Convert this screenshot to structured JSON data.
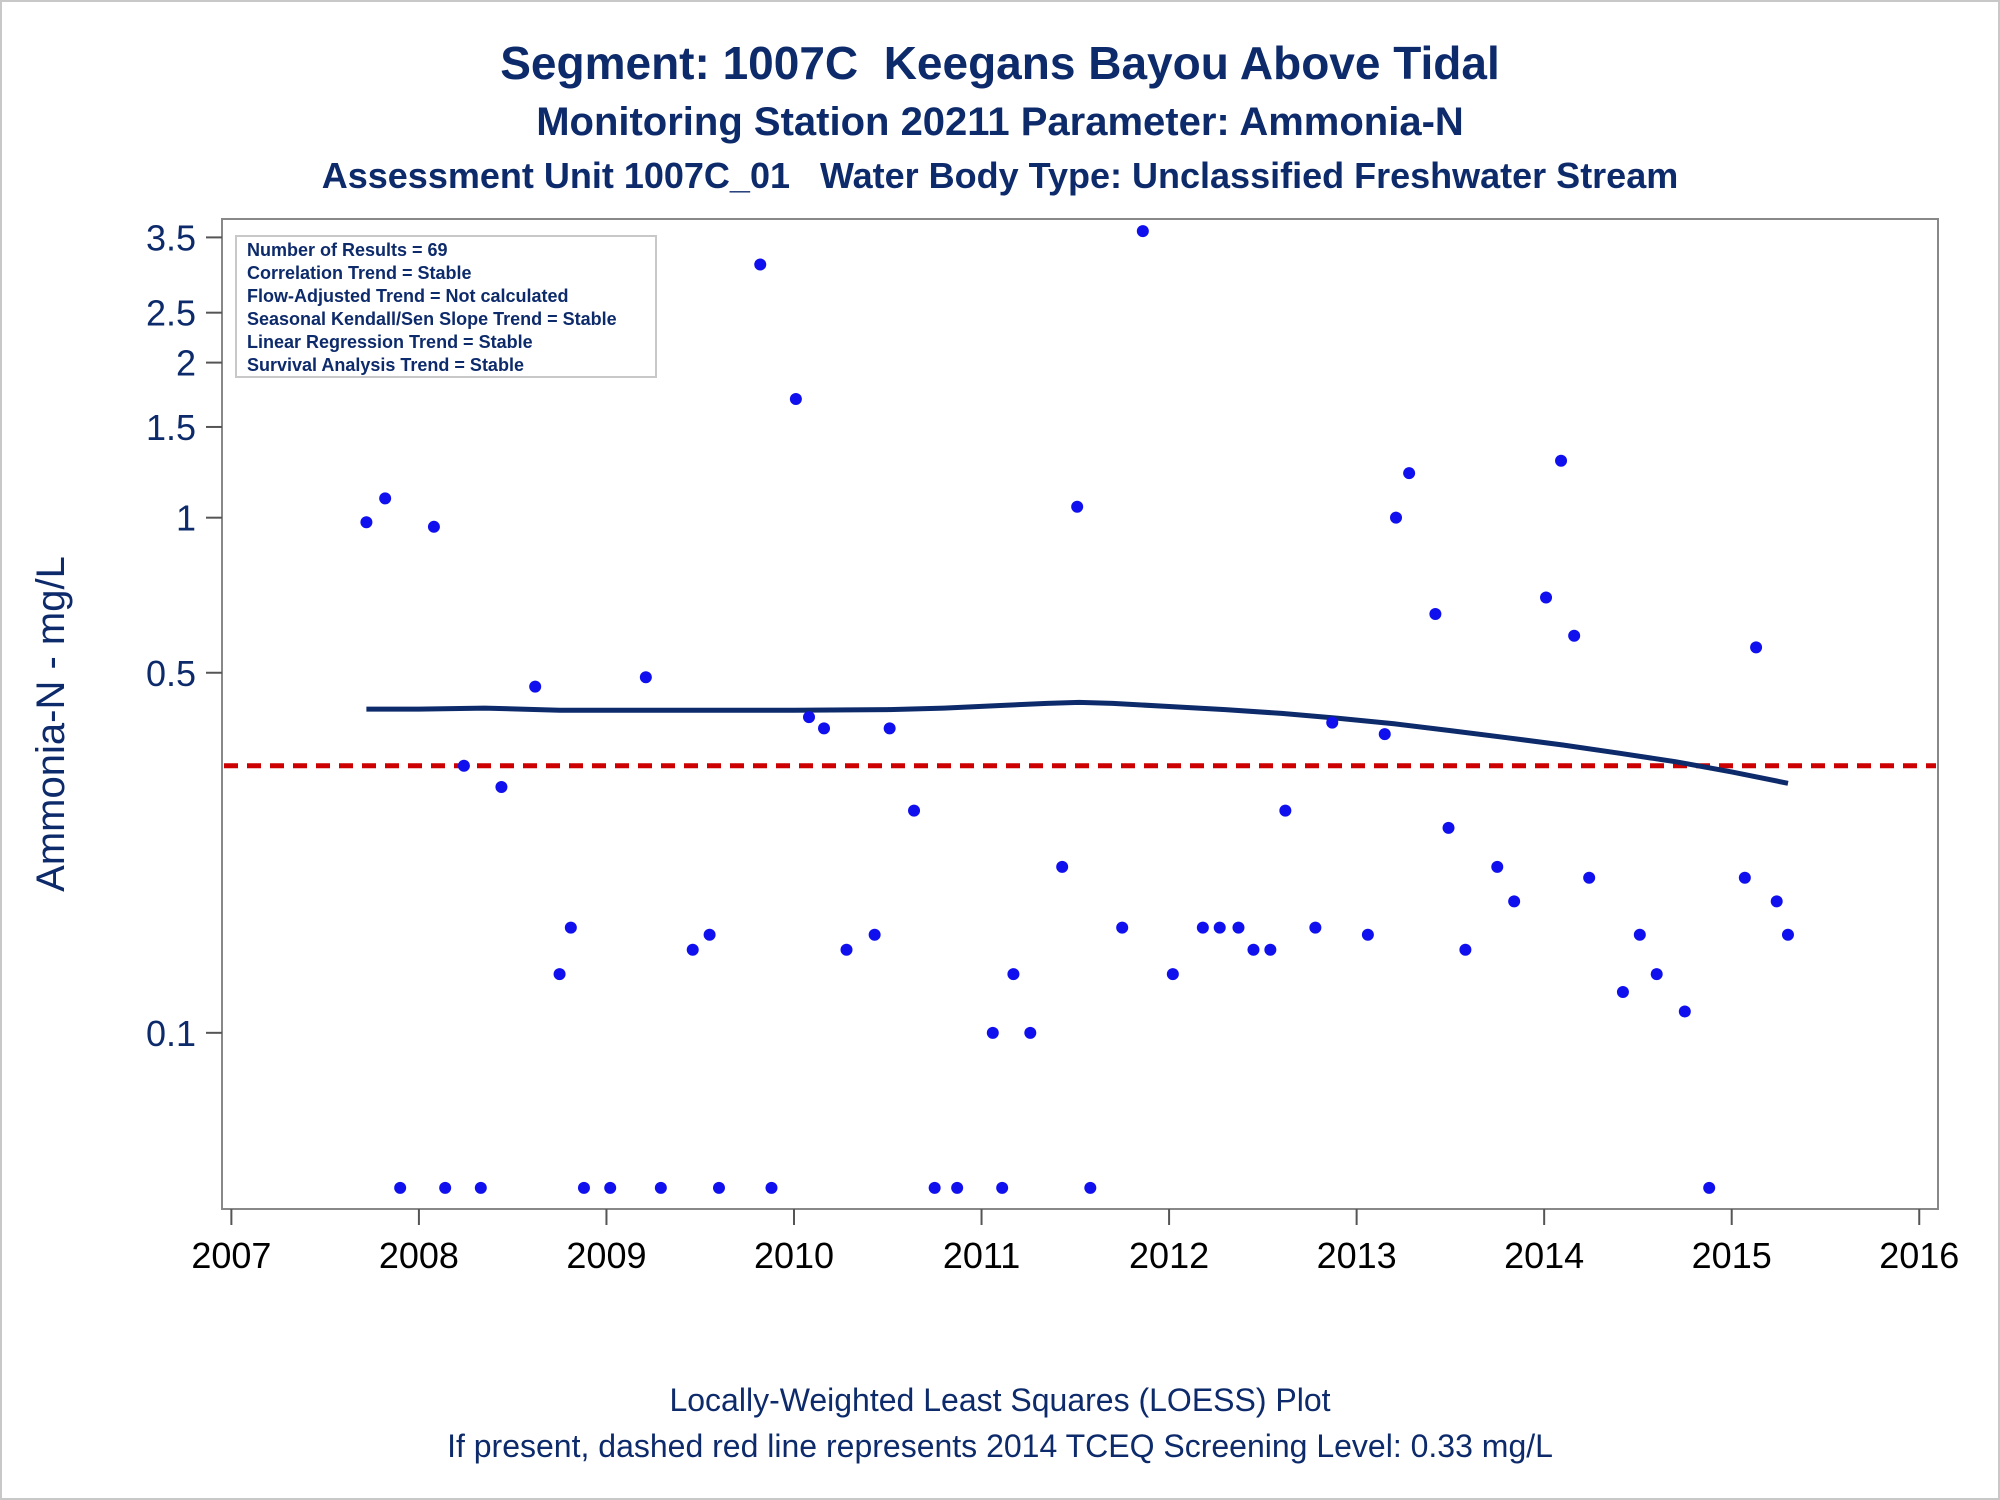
{
  "chart_data": {
    "type": "scatter",
    "title": "Segment: 1007C  Keegans Bayou Above Tidal",
    "subtitle": "Monitoring Station 20211 Parameter: Ammonia-N",
    "subtitle2": "Assessment Unit 1007C_01   Water Body Type: Unclassified Freshwater Stream",
    "ylabel": "Ammonia-N - mg/L",
    "xlabel": "",
    "footnote1": "Locally-Weighted Least Squares (LOESS) Plot",
    "footnote2": "If present, dashed red line represents 2014 TCEQ Screening Level: 0.33 mg/L",
    "y_scale": "log",
    "xlim": [
      2006.95,
      2016.1
    ],
    "ylim": [
      0.0455,
      3.8
    ],
    "x_ticks": [
      2007,
      2008,
      2009,
      2010,
      2011,
      2012,
      2013,
      2014,
      2015,
      2016
    ],
    "y_ticks": [
      0.1,
      0.5,
      1,
      1.5,
      2,
      2.5,
      3.5
    ],
    "y_tick_labels": [
      "0.1",
      "0.5",
      "1",
      "1.5",
      "2",
      "2.5",
      "3.5"
    ],
    "grid": false,
    "legend_box": [
      "Number of Results = 69",
      "Correlation Trend = Stable",
      "Flow-Adjusted Trend = Not calculated",
      "Seasonal Kendall/Sen Slope Trend = Stable",
      "Linear Regression Trend = Stable",
      "Survival Analysis Trend = Stable"
    ],
    "legend_placement": "top-left",
    "screening_level": 0.33,
    "colors": {
      "points": "#1010ee",
      "loess": "#0d2a6b",
      "screening": "#cc0000",
      "text": "#0d2a6b"
    },
    "series": [
      {
        "type": "scatter",
        "x": [
          2007.72,
          2007.82,
          2007.9,
          2008.08,
          2008.14,
          2008.24,
          2008.33,
          2008.44,
          2008.62,
          2008.75,
          2008.81,
          2008.88,
          2009.02,
          2009.21,
          2009.29,
          2009.46,
          2009.55,
          2009.6,
          2009.82,
          2009.88,
          2010.01,
          2010.08,
          2010.16,
          2010.28,
          2010.43,
          2010.51,
          2010.64,
          2010.75,
          2010.87,
          2011.06,
          2011.11,
          2011.17,
          2011.26,
          2011.43,
          2011.51,
          2011.58,
          2011.75,
          2011.86,
          2012.02,
          2012.18,
          2012.27,
          2012.37,
          2012.45,
          2012.54,
          2012.62,
          2012.78,
          2012.87,
          2013.06,
          2013.15,
          2013.21,
          2013.28,
          2013.42,
          2013.49,
          2013.58,
          2013.75,
          2013.84,
          2014.01,
          2014.09,
          2014.16,
          2014.24,
          2014.42,
          2014.51,
          2014.6,
          2014.75,
          2014.88,
          2015.07,
          2015.13,
          2015.24,
          2015.3
        ],
        "y": [
          0.98,
          1.09,
          0.05,
          0.96,
          0.05,
          0.33,
          0.05,
          0.3,
          0.47,
          0.13,
          0.16,
          0.05,
          0.05,
          0.49,
          0.05,
          0.145,
          0.155,
          0.05,
          3.1,
          0.05,
          1.7,
          0.41,
          0.39,
          0.145,
          0.155,
          0.39,
          0.27,
          0.05,
          0.05,
          0.1,
          0.05,
          0.13,
          0.1,
          0.21,
          1.05,
          0.05,
          0.16,
          3.6,
          0.13,
          0.16,
          0.16,
          0.16,
          0.145,
          0.145,
          0.27,
          0.16,
          0.4,
          0.155,
          0.38,
          1.0,
          1.22,
          0.65,
          0.25,
          0.145,
          0.21,
          0.18,
          0.7,
          1.29,
          0.59,
          0.2,
          0.12,
          0.155,
          0.13,
          0.11,
          0.05,
          0.2,
          0.56,
          0.18,
          0.155
        ]
      },
      {
        "type": "line",
        "x": [
          2007.72,
          2008.0,
          2008.35,
          2008.75,
          2009.0,
          2009.5,
          2010.0,
          2010.5,
          2010.8,
          2011.1,
          2011.35,
          2011.52,
          2011.7,
          2012.0,
          2012.3,
          2012.6,
          2012.9,
          2013.2,
          2013.5,
          2013.8,
          2014.1,
          2014.4,
          2014.7,
          2015.0,
          2015.3
        ],
        "y": [
          0.425,
          0.425,
          0.427,
          0.423,
          0.423,
          0.423,
          0.423,
          0.424,
          0.427,
          0.432,
          0.436,
          0.438,
          0.436,
          0.43,
          0.424,
          0.417,
          0.408,
          0.398,
          0.386,
          0.374,
          0.362,
          0.349,
          0.336,
          0.321,
          0.305
        ]
      }
    ]
  }
}
